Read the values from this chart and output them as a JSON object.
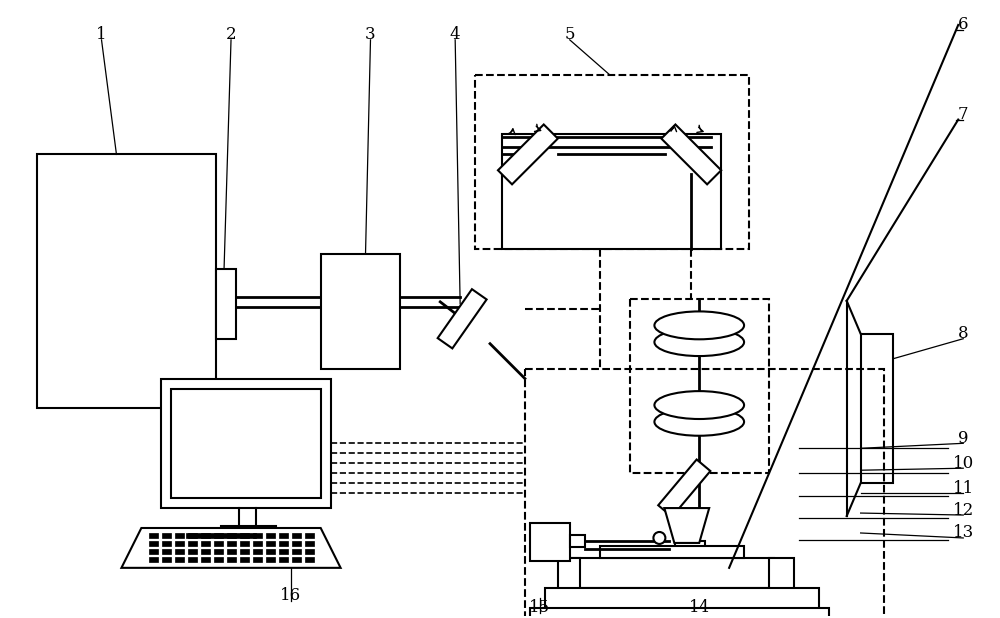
{
  "bg_color": "#ffffff",
  "lc": "#000000",
  "lw": 1.5,
  "fs": 12
}
